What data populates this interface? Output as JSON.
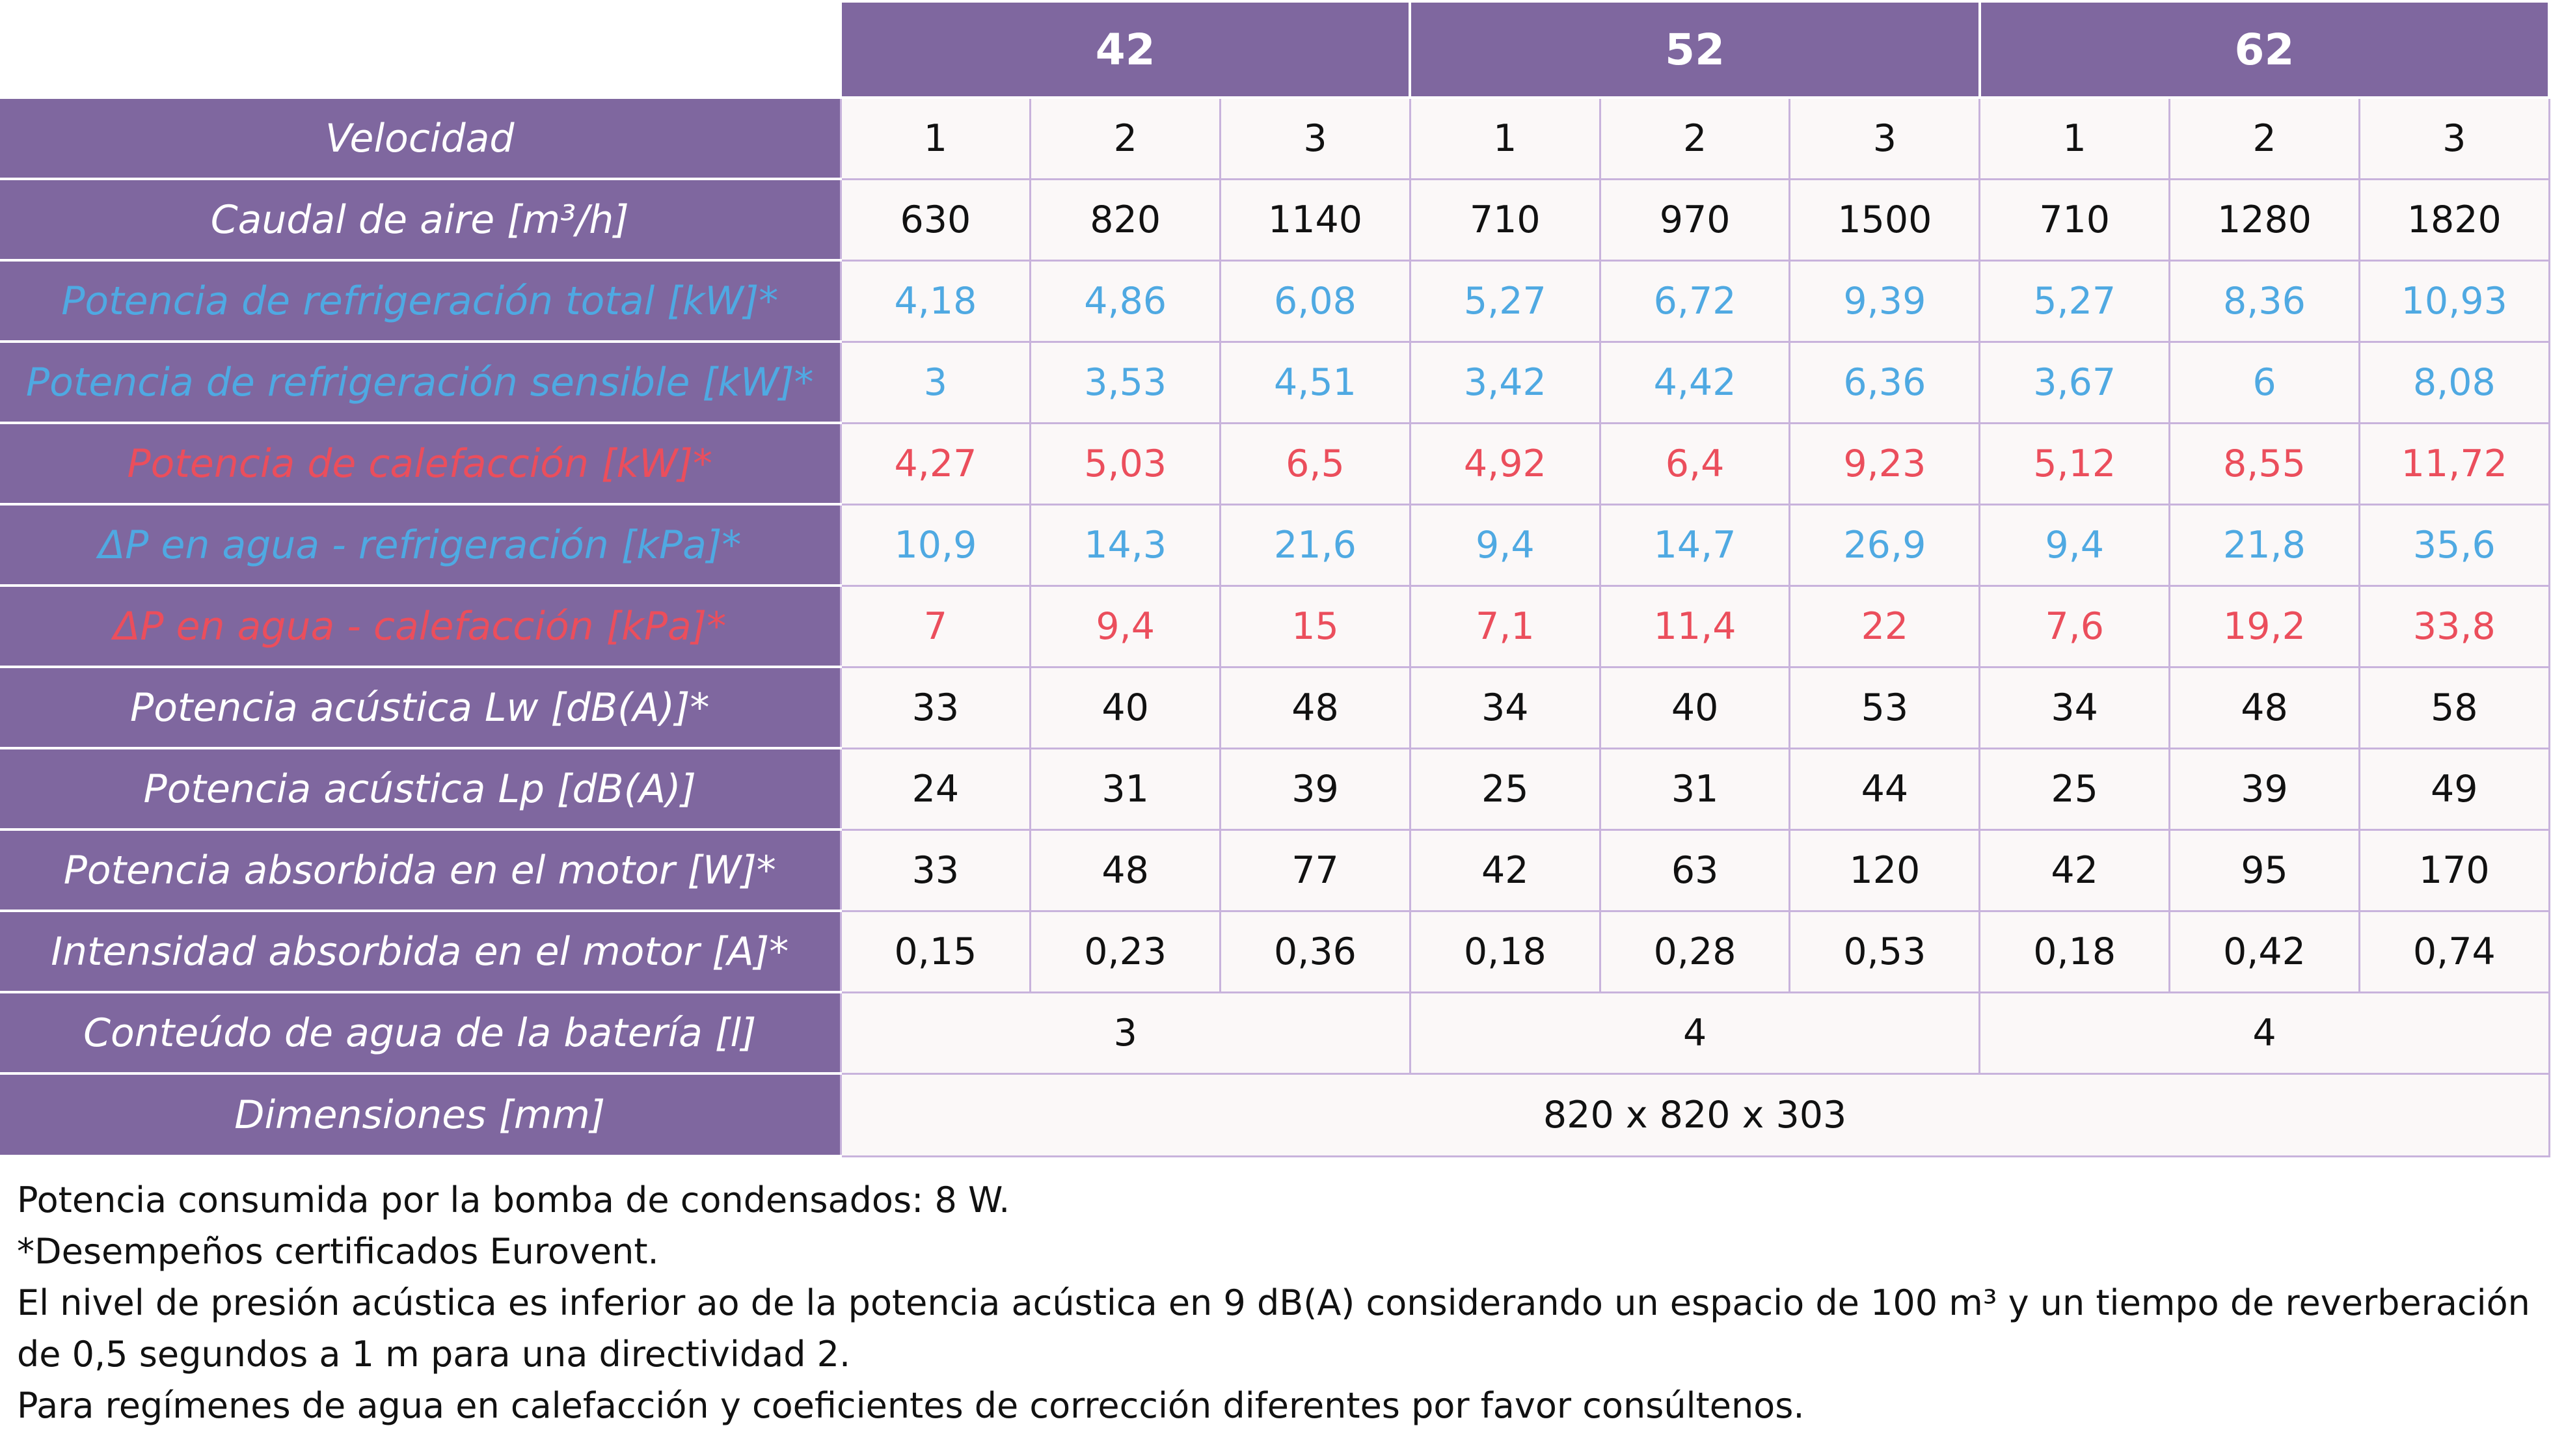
{
  "models": [
    "42",
    "52",
    "62"
  ],
  "speed_row": {
    "label": "Velocidad",
    "values": [
      "1",
      "2",
      "3",
      "1",
      "2",
      "3",
      "1",
      "2",
      "3"
    ]
  },
  "rows": [
    {
      "label": "Caudal de aire [m³/h]",
      "color": "black",
      "values": [
        "630",
        "820",
        "1140",
        "710",
        "970",
        "1500",
        "710",
        "1280",
        "1820"
      ]
    },
    {
      "label": "Potencia de refrigeración total [kW]*",
      "color": "blue",
      "values": [
        "4,18",
        "4,86",
        "6,08",
        "5,27",
        "6,72",
        "9,39",
        "5,27",
        "8,36",
        "10,93"
      ]
    },
    {
      "label": "Potencia de refrigeración sensible [kW]*",
      "color": "blue",
      "values": [
        "3",
        "3,53",
        "4,51",
        "3,42",
        "4,42",
        "6,36",
        "3,67",
        "6",
        "8,08"
      ]
    },
    {
      "label": "Potencia de calefacción [kW]*",
      "color": "red",
      "values": [
        "4,27",
        "5,03",
        "6,5",
        "4,92",
        "6,4",
        "9,23",
        "5,12",
        "8,55",
        "11,72"
      ]
    },
    {
      "label": "ΔP en agua - refrigeración [kPa]*",
      "color": "blue",
      "values": [
        "10,9",
        "14,3",
        "21,6",
        "9,4",
        "14,7",
        "26,9",
        "9,4",
        "21,8",
        "35,6"
      ]
    },
    {
      "label": "ΔP en agua - calefacción [kPa]*",
      "color": "red",
      "values": [
        "7",
        "9,4",
        "15",
        "7,1",
        "11,4",
        "22",
        "7,6",
        "19,2",
        "33,8"
      ]
    },
    {
      "label": "Potencia acústica Lw [dB(A)]*",
      "color": "black",
      "values": [
        "33",
        "40",
        "48",
        "34",
        "40",
        "53",
        "34",
        "48",
        "58"
      ]
    },
    {
      "label": "Potencia acústica Lp [dB(A)]",
      "color": "black",
      "values": [
        "24",
        "31",
        "39",
        "25",
        "31",
        "44",
        "25",
        "39",
        "49"
      ]
    },
    {
      "label": "Potencia absorbida en el motor [W]*",
      "color": "black",
      "values": [
        "33",
        "48",
        "77",
        "42",
        "63",
        "120",
        "42",
        "95",
        "170"
      ]
    },
    {
      "label": "Intensidad absorbida en el motor [A]*",
      "color": "black",
      "values": [
        "0,15",
        "0,23",
        "0,36",
        "0,18",
        "0,28",
        "0,53",
        "0,18",
        "0,42",
        "0,74"
      ]
    }
  ],
  "water_row": {
    "label": "Conteúdo de agua de la batería [l]",
    "values": [
      "3",
      "4",
      "4"
    ]
  },
  "dimensions_row": {
    "label": "Dimensiones [mm]",
    "value": "820 x 820 x 303"
  },
  "notes": [
    "Potencia consumida por la bomba de condensados: 8 W.",
    "*Desempeños certificados Eurovent.",
    "El nivel de presión acústica es inferior ao de la potencia acústica en 9 dB(A) considerando un espacio de 100 m³ y un tiempo de reverberación",
    "de 0,5 segundos a 1 m para una directividad 2.",
    "Para regímenes de agua en calefacción y coeficientes de corrección diferentes por favor consúltenos."
  ],
  "colors": {
    "header_purple": "#7f679f",
    "blue": "#4fa9e2",
    "red": "#eb4e5c",
    "border": "#c8b3dc"
  }
}
